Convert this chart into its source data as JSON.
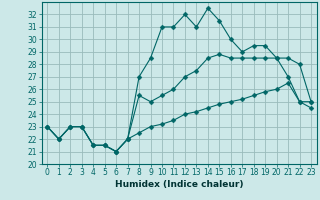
{
  "xlabel": "Humidex (Indice chaleur)",
  "bg_color": "#cce8e8",
  "grid_color": "#99bbbb",
  "line_color": "#006666",
  "xlim": [
    -0.5,
    23.5
  ],
  "ylim": [
    20,
    33
  ],
  "yticks": [
    20,
    21,
    22,
    23,
    24,
    25,
    26,
    27,
    28,
    29,
    30,
    31,
    32
  ],
  "xticks": [
    0,
    1,
    2,
    3,
    4,
    5,
    6,
    7,
    8,
    9,
    10,
    11,
    12,
    13,
    14,
    15,
    16,
    17,
    18,
    19,
    20,
    21,
    22,
    23
  ],
  "series": [
    [
      23,
      22,
      23,
      23,
      21.5,
      21.5,
      21,
      22,
      27,
      28.5,
      31,
      31,
      32,
      31,
      32.5,
      31.5,
      30,
      29,
      29.5,
      29.5,
      28.5,
      27,
      25,
      25
    ],
    [
      23,
      22,
      23,
      23,
      21.5,
      21.5,
      21,
      22,
      25.5,
      25,
      25.5,
      26,
      27,
      27.5,
      28.5,
      28.8,
      28.5,
      28.5,
      28.5,
      28.5,
      28.5,
      28.5,
      28,
      25
    ],
    [
      23,
      22,
      23,
      23,
      21.5,
      21.5,
      21,
      22,
      22.5,
      23,
      23.2,
      23.5,
      24,
      24.2,
      24.5,
      24.8,
      25,
      25.2,
      25.5,
      25.8,
      26,
      26.5,
      25,
      24.5
    ]
  ],
  "tick_fontsize": 5.5,
  "xlabel_fontsize": 6.5,
  "marker_size": 2.5,
  "linewidth": 0.8
}
